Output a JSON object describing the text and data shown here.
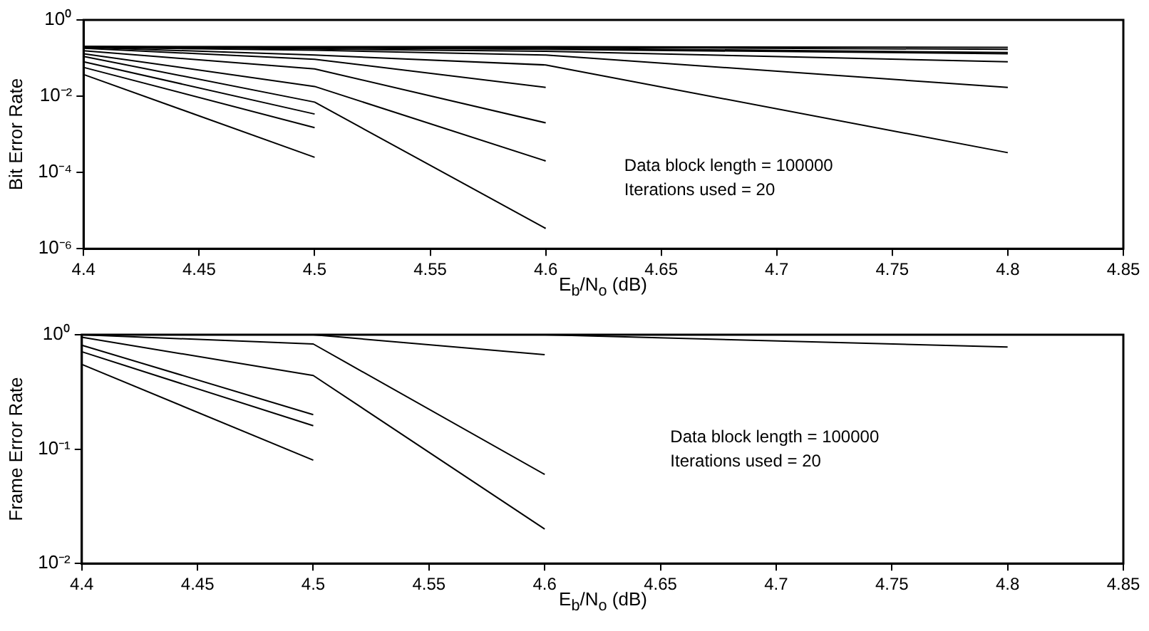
{
  "chart_data": [
    {
      "type": "line",
      "ylabel": "Bit Error Rate",
      "xlabel": "E$_{b}$/N$_{o}$ (dB)",
      "annotations": [
        "Data block length = 100000",
        "Iterations used = 20"
      ],
      "log": "y",
      "grid": false,
      "xlim": [
        4.4,
        4.85
      ],
      "ylim": [
        1e-06,
        1
      ],
      "xticks": [
        4.4,
        4.45,
        4.5,
        4.55,
        4.6,
        4.65,
        4.7,
        4.75,
        4.8,
        4.85
      ],
      "yticks": [
        {
          "value": 1e-06,
          "label": "10⁻⁶"
        },
        {
          "value": 0.0001,
          "label": "10⁻⁴"
        },
        {
          "value": 0.01,
          "label": "10⁻²"
        },
        {
          "value": 1,
          "label": "10⁰"
        }
      ],
      "series": [
        {
          "color": "#000000",
          "x": [
            4.4,
            4.5
          ],
          "values": [
            0.037,
            0.00025
          ]
        },
        {
          "color": "#000000",
          "x": [
            4.4,
            4.5
          ],
          "values": [
            0.057,
            0.0015
          ]
        },
        {
          "color": "#000000",
          "x": [
            4.4,
            4.5
          ],
          "values": [
            0.08,
            0.0034
          ]
        },
        {
          "color": "#000000",
          "x": [
            4.4,
            4.5,
            4.6
          ],
          "values": [
            0.11,
            0.007,
            3.4e-06
          ]
        },
        {
          "color": "#000000",
          "x": [
            4.4,
            4.5,
            4.6
          ],
          "values": [
            0.13,
            0.018,
            0.0002
          ]
        },
        {
          "color": "#000000",
          "x": [
            4.4,
            4.5,
            4.6
          ],
          "values": [
            0.155,
            0.052,
            0.002
          ]
        },
        {
          "color": "#000000",
          "x": [
            4.4,
            4.5,
            4.6
          ],
          "values": [
            0.18,
            0.093,
            0.017
          ]
        },
        {
          "color": "#000000",
          "x": [
            4.4,
            4.5,
            4.6,
            4.8
          ],
          "values": [
            0.19,
            0.12,
            0.066,
            0.00033
          ]
        },
        {
          "color": "#000000",
          "x": [
            4.4,
            4.5,
            4.6,
            4.8
          ],
          "values": [
            0.19,
            0.16,
            0.12,
            0.017
          ]
        },
        {
          "color": "#000000",
          "x": [
            4.4,
            4.6,
            4.8
          ],
          "values": [
            0.2,
            0.15,
            0.08
          ]
        },
        {
          "color": "#000000",
          "x": [
            4.4,
            4.6,
            4.8
          ],
          "values": [
            0.2,
            0.17,
            0.13
          ]
        },
        {
          "color": "#000000",
          "x": [
            4.4,
            4.6,
            4.8
          ],
          "values": [
            0.2,
            0.18,
            0.14
          ]
        },
        {
          "color": "#000000",
          "x": [
            4.4,
            4.6,
            4.8
          ],
          "values": [
            0.2,
            0.19,
            0.17
          ]
        },
        {
          "color": "#000000",
          "x": [
            4.4,
            4.6,
            4.8
          ],
          "values": [
            0.2,
            0.2,
            0.19
          ]
        }
      ]
    },
    {
      "type": "line",
      "ylabel": "Frame Error Rate",
      "xlabel": "E$_{b}$/N$_{o}$ (dB)",
      "annotations": [
        "Data block length = 100000",
        "Iterations used = 20"
      ],
      "log": "y",
      "grid": false,
      "xlim": [
        4.4,
        4.85
      ],
      "ylim": [
        0.01,
        1
      ],
      "xticks": [
        4.4,
        4.45,
        4.5,
        4.55,
        4.6,
        4.65,
        4.7,
        4.75,
        4.8,
        4.85
      ],
      "yticks": [
        {
          "value": 0.01,
          "label": "10⁻²"
        },
        {
          "value": 0.1,
          "label": "10⁻¹"
        },
        {
          "value": 1,
          "label": "10⁰"
        }
      ],
      "series": [
        {
          "color": "#000000",
          "x": [
            4.4,
            4.5
          ],
          "values": [
            0.55,
            0.08
          ]
        },
        {
          "color": "#000000",
          "x": [
            4.4,
            4.5
          ],
          "values": [
            0.71,
            0.16
          ]
        },
        {
          "color": "#000000",
          "x": [
            4.4,
            4.5
          ],
          "values": [
            0.81,
            0.2
          ]
        },
        {
          "color": "#000000",
          "x": [
            4.4,
            4.5,
            4.6
          ],
          "values": [
            0.95,
            0.44,
            0.02
          ]
        },
        {
          "color": "#000000",
          "x": [
            4.4,
            4.5,
            4.6
          ],
          "values": [
            1,
            0.83,
            0.06
          ]
        },
        {
          "color": "#000000",
          "x": [
            4.4,
            4.5,
            4.6
          ],
          "values": [
            1,
            1,
            0.67
          ]
        },
        {
          "color": "#000000",
          "x": [
            4.4,
            4.6,
            4.8
          ],
          "values": [
            1,
            1,
            0.78
          ]
        }
      ]
    }
  ]
}
